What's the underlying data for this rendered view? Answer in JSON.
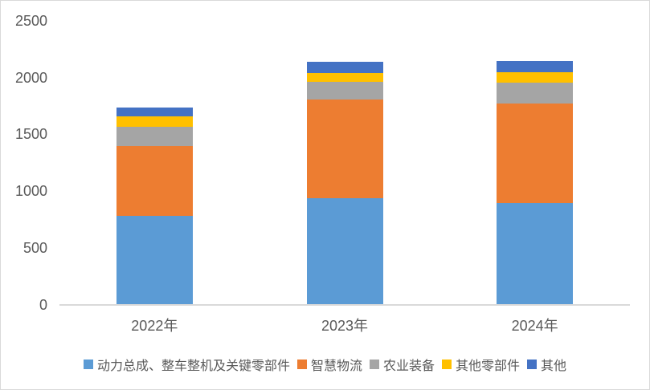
{
  "chart_data": {
    "type": "bar",
    "stacked": true,
    "title": "",
    "xlabel": "",
    "ylabel": "",
    "categories": [
      "2022年",
      "2023年",
      "2024年"
    ],
    "series": [
      {
        "name": "动力总成、整车整机及关键零部件",
        "color": "#5B9BD5",
        "values": [
          780,
          930,
          890
        ]
      },
      {
        "name": "智慧物流",
        "color": "#ED7D31",
        "values": [
          615,
          875,
          880
        ]
      },
      {
        "name": "农业装备",
        "color": "#A5A5A5",
        "values": [
          170,
          155,
          185
        ]
      },
      {
        "name": "其他零部件",
        "color": "#FFC000",
        "values": [
          90,
          80,
          90
        ]
      },
      {
        "name": "其他",
        "color": "#4472C4",
        "values": [
          80,
          95,
          100
        ]
      }
    ],
    "totals": [
      1735,
      2135,
      2145
    ],
    "y_ticks": [
      0,
      500,
      1000,
      1500,
      2000,
      2500
    ],
    "ylim": [
      0,
      2500
    ],
    "grid": false,
    "legend_position": "bottom",
    "axis_text_color": "#595959",
    "axis_line_color": "#D9D9D9",
    "background_color": "#FFFFFF",
    "border_color": "#D9D9D9"
  }
}
